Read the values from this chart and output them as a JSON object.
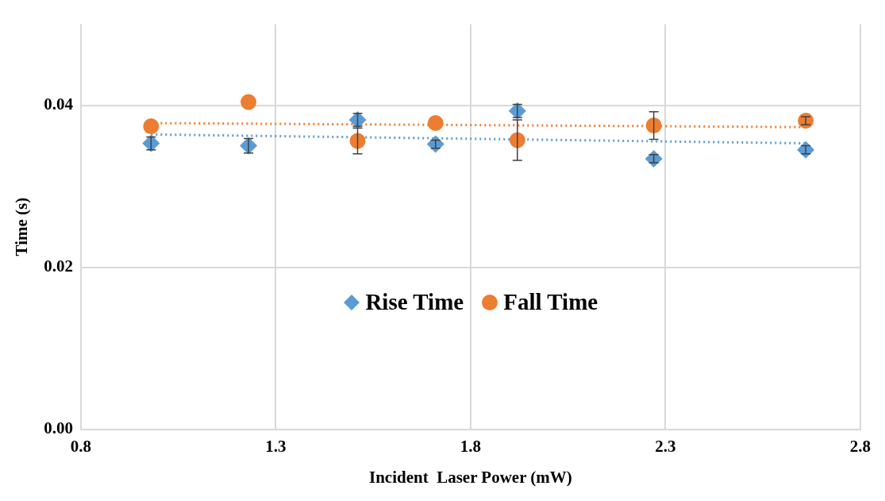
{
  "chart_data": {
    "type": "scatter",
    "xlabel": "Incident  Laser Power (mW)",
    "ylabel": "Time (s)",
    "xlim": [
      0.8,
      2.8
    ],
    "xticks": [
      0.8,
      1.3,
      1.8,
      2.3,
      2.8
    ],
    "ylim": [
      0,
      0.05
    ],
    "yticks": [
      {
        "value": 0,
        "label": "0.00"
      },
      0.02,
      0.04
    ],
    "grid": true,
    "legend": "center",
    "series": [
      {
        "name": "Rise Time",
        "color": "#5b9bd5",
        "marker": "diamond",
        "x": [
          0.98,
          1.23,
          1.51,
          1.71,
          1.92,
          2.27,
          2.66
        ],
        "values": [
          0.0353,
          0.035,
          0.0382,
          0.0352,
          0.0393,
          0.0334,
          0.0345
        ],
        "errors": [
          0.0008,
          0.0009,
          0.0008,
          0.0005,
          0.0008,
          0.0005,
          0.0005
        ]
      },
      {
        "name": "Fall Time",
        "color": "#ed7d31",
        "marker": "circle",
        "x": [
          0.98,
          1.23,
          1.51,
          1.71,
          1.92,
          2.27,
          2.66
        ],
        "values": [
          0.0374,
          0.0404,
          0.0356,
          0.0378,
          0.0357,
          0.0375,
          0.0381
        ],
        "errors": [
          null,
          null,
          0.0016,
          null,
          0.0025,
          0.0017,
          0.0005
        ]
      },
      {
        "type": "line",
        "color": "#5b9bd5",
        "marker": "none",
        "line_style": "dotted",
        "x": [
          0.98,
          2.66
        ],
        "values": [
          0.0364,
          0.0353
        ]
      },
      {
        "type": "line",
        "color": "#ed7d31",
        "marker": "none",
        "line_style": "dotted",
        "x": [
          0.98,
          2.66
        ],
        "values": [
          0.0378,
          0.0373
        ]
      }
    ]
  }
}
